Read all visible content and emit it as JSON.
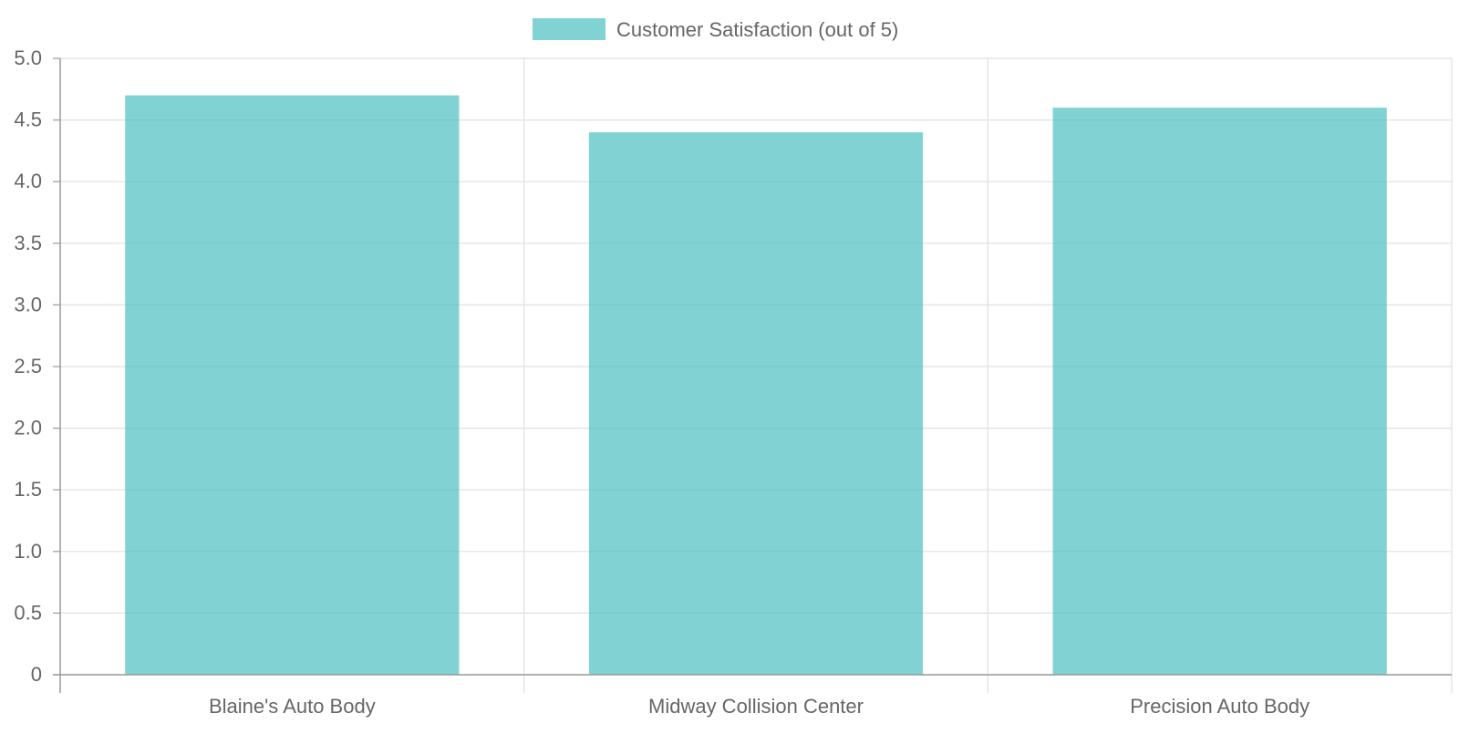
{
  "colors": {
    "bar_fill": "#4bc0c0",
    "bar_opacity": 0.7,
    "grid": "#e0e0e0",
    "axis": "#9a9a9a",
    "text": "#666666"
  },
  "chart_data": {
    "type": "bar",
    "title": "",
    "xlabel": "",
    "ylabel": "",
    "legend_position": "top",
    "grid": true,
    "categories": [
      "Blaine's Auto Body",
      "Midway Collision Center",
      "Precision Auto Body"
    ],
    "series": [
      {
        "name": "Customer Satisfaction (out of 5)",
        "values": [
          4.7,
          4.4,
          4.6
        ]
      }
    ],
    "ylim": [
      0,
      5
    ],
    "y_ticks": [
      "0",
      "0.5",
      "1.0",
      "1.5",
      "2.0",
      "2.5",
      "3.0",
      "3.5",
      "4.0",
      "4.5",
      "5.0"
    ]
  }
}
